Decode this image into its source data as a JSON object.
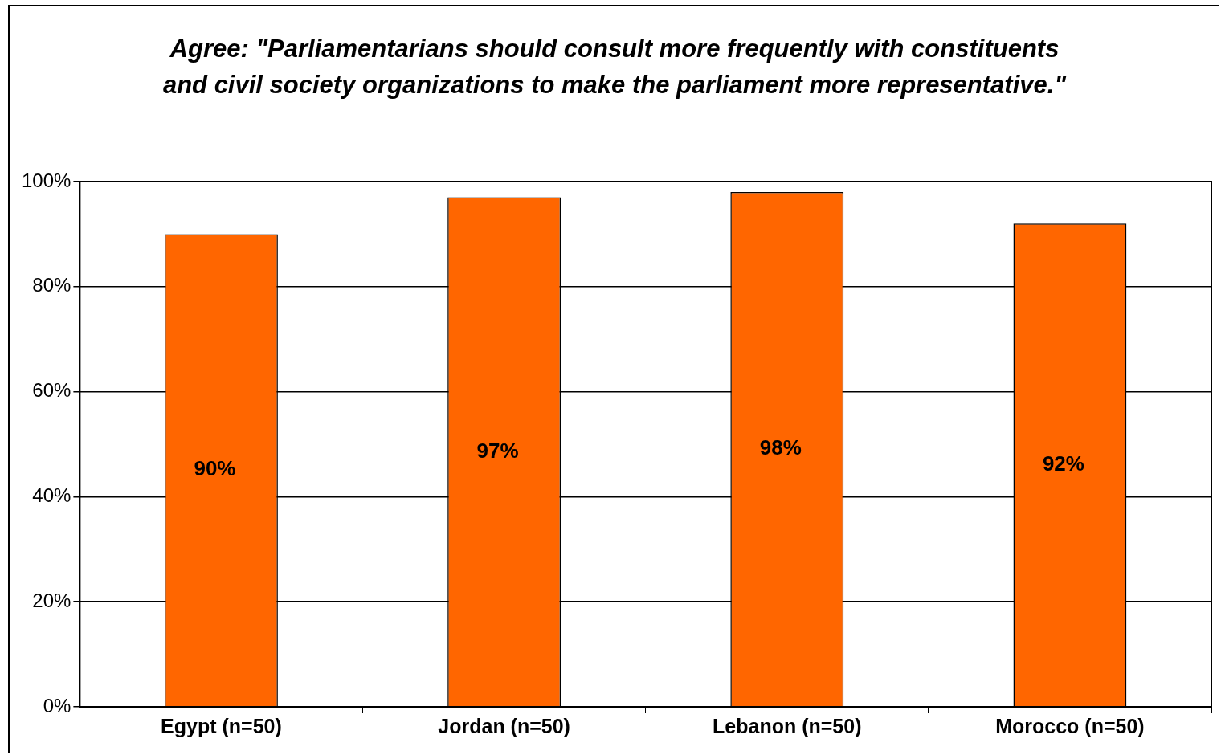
{
  "chart_data": {
    "type": "bar",
    "title": "Agree:  \"Parliamentarians should consult more frequently with constituents and civil society organizations to make the parliament more representative.\"",
    "categories": [
      "Egypt (n=50)",
      "Jordan (n=50)",
      "Lebanon (n=50)",
      "Morocco (n=50)"
    ],
    "values": [
      90,
      97,
      98,
      92
    ],
    "color": "#ff6600",
    "ylim": [
      0,
      100
    ],
    "yticks": [
      {
        "value": 0,
        "label": "0%"
      },
      {
        "value": 20,
        "label": "20%"
      },
      {
        "value": 40,
        "label": "40%"
      },
      {
        "value": 60,
        "label": "60%"
      },
      {
        "value": 80,
        "label": "80%"
      },
      {
        "value": 100,
        "label": "100%"
      }
    ],
    "value_labels": [
      "90%",
      "97%",
      "98%",
      "92%"
    ],
    "grid": "y",
    "legend": false
  }
}
